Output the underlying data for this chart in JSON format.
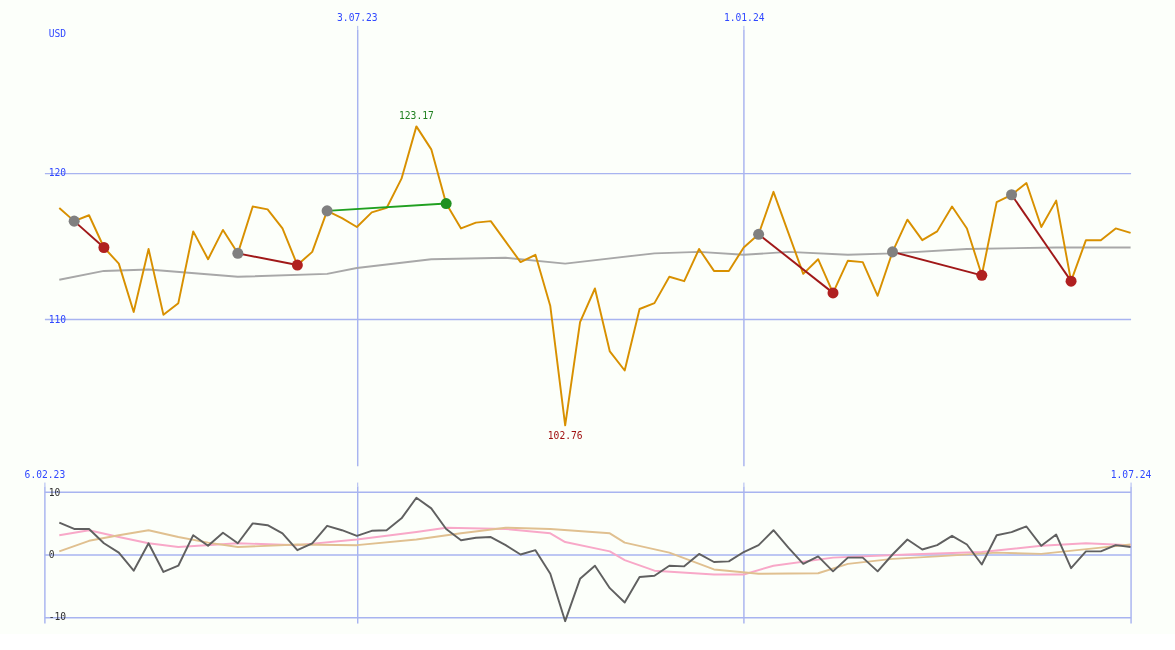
{
  "chart_data": [
    {
      "type": "line",
      "ylabel": "USD",
      "xlim": [
        "2023-02-06",
        "2024-07-01"
      ],
      "ylim": [
        100,
        129.8
      ],
      "yticks": [
        110,
        120
      ],
      "xticks": [
        {
          "value": "2023-07-03",
          "label": "3.07.23"
        },
        {
          "value": "2024-01-01",
          "label": "1.01.24"
        }
      ],
      "grid": true,
      "legend": false,
      "line_style": "solid",
      "annotations": [
        {
          "text": "123.17",
          "x": "2023-07-31",
          "y": 123.17
        },
        {
          "text": "102.76",
          "x": "2023-10-09",
          "y": 102.76
        }
      ],
      "x": [
        "2023-02-13",
        "2023-02-20",
        "2023-02-27",
        "2023-03-06",
        "2023-03-13",
        "2023-03-20",
        "2023-03-27",
        "2023-04-03",
        "2023-04-10",
        "2023-04-17",
        "2023-04-24",
        "2023-05-01",
        "2023-05-08",
        "2023-05-15",
        "2023-05-22",
        "2023-05-29",
        "2023-06-05",
        "2023-06-12",
        "2023-06-19",
        "2023-06-26",
        "2023-07-03",
        "2023-07-10",
        "2023-07-17",
        "2023-07-24",
        "2023-07-31",
        "2023-08-07",
        "2023-08-14",
        "2023-08-21",
        "2023-08-28",
        "2023-09-04",
        "2023-09-11",
        "2023-09-18",
        "2023-09-25",
        "2023-10-02",
        "2023-10-09",
        "2023-10-16",
        "2023-10-23",
        "2023-10-30",
        "2023-11-06",
        "2023-11-13",
        "2023-11-20",
        "2023-11-27",
        "2023-12-04",
        "2023-12-11",
        "2023-12-18",
        "2023-12-25",
        "2024-01-01",
        "2024-01-08",
        "2024-01-15",
        "2024-01-22",
        "2024-01-29",
        "2024-02-05",
        "2024-02-12",
        "2024-02-19",
        "2024-02-26",
        "2024-03-04",
        "2024-03-11",
        "2024-03-18",
        "2024-03-25",
        "2024-04-01",
        "2024-04-08",
        "2024-04-15",
        "2024-04-22",
        "2024-04-29",
        "2024-05-06",
        "2024-05-13",
        "2024-05-20",
        "2024-05-27",
        "2024-06-03",
        "2024-06-10",
        "2024-06-17",
        "2024-06-24",
        "2024-07-01"
      ],
      "series": [
        {
          "color": "#a8a8a8",
          "x": [
            "2023-02-13",
            "2023-03-06",
            "2023-03-27",
            "2023-05-08",
            "2023-06-19",
            "2023-07-03",
            "2023-08-07",
            "2023-09-11",
            "2023-10-09",
            "2023-11-20",
            "2023-12-11",
            "2024-01-01",
            "2024-01-22",
            "2024-02-19",
            "2024-03-11",
            "2024-04-15",
            "2024-05-27",
            "2024-07-01"
          ],
          "values": [
            112.7,
            113.3,
            113.4,
            112.9,
            113.1,
            113.5,
            114.1,
            114.2,
            113.8,
            114.5,
            114.6,
            114.4,
            114.6,
            114.4,
            114.5,
            114.8,
            114.9,
            114.9
          ]
        },
        {
          "color": "#d89000",
          "values": [
            117.6,
            116.7,
            117.1,
            114.9,
            113.8,
            110.5,
            114.8,
            110.3,
            111.1,
            116.0,
            114.1,
            116.1,
            114.5,
            117.7,
            117.5,
            116.2,
            113.7,
            114.6,
            117.4,
            116.9,
            116.3,
            117.3,
            117.6,
            119.6,
            123.17,
            121.6,
            117.9,
            116.2,
            116.6,
            116.7,
            115.3,
            113.9,
            114.4,
            110.9,
            102.76,
            109.8,
            112.1,
            107.8,
            106.5,
            110.7,
            111.1,
            112.9,
            112.6,
            114.8,
            113.3,
            113.3,
            114.9,
            115.8,
            118.7,
            115.9,
            113.1,
            114.1,
            111.8,
            114.0,
            113.9,
            111.6,
            114.6,
            116.8,
            115.4,
            116.0,
            117.7,
            116.2,
            113.0,
            118.0,
            118.5,
            119.3,
            116.3,
            118.1,
            112.6,
            115.4,
            115.4,
            116.2,
            115.9
          ]
        },
        {
          "color": "#a01818",
          "x": [
            "2023-02-20",
            "2023-03-06"
          ],
          "values": [
            116.7,
            114.9
          ]
        },
        {
          "color": "#a01818",
          "x": [
            "2023-05-08",
            "2023-06-05"
          ],
          "values": [
            114.5,
            113.7
          ]
        },
        {
          "color": "#a01818",
          "x": [
            "2024-01-08",
            "2024-02-12"
          ],
          "values": [
            115.8,
            111.8
          ]
        },
        {
          "color": "#a01818",
          "x": [
            "2024-03-11",
            "2024-04-22"
          ],
          "values": [
            114.6,
            113.0
          ]
        },
        {
          "color": "#a01818",
          "x": [
            "2024-05-06",
            "2024-06-03"
          ],
          "values": [
            118.5,
            112.6
          ]
        },
        {
          "color": "#20a020",
          "x": [
            "2023-06-19",
            "2023-08-14"
          ],
          "values": [
            117.4,
            117.9
          ]
        },
        {
          "type": "scatter",
          "color": "#808080",
          "x": [
            "2023-02-20",
            "2023-05-08",
            "2023-06-19",
            "2024-01-08",
            "2024-03-11",
            "2024-05-06"
          ],
          "values": [
            116.7,
            114.5,
            117.4,
            115.8,
            114.6,
            118.5
          ]
        },
        {
          "type": "scatter",
          "color": "#b02020",
          "x": [
            "2023-03-06",
            "2023-06-05",
            "2024-02-12",
            "2024-04-22",
            "2024-06-03"
          ],
          "values": [
            114.9,
            113.7,
            111.8,
            113.0,
            112.6
          ]
        },
        {
          "type": "scatter",
          "color": "#209020",
          "x": [
            "2023-08-14"
          ],
          "values": [
            117.9
          ]
        }
      ]
    },
    {
      "type": "line",
      "xlim": [
        "2023-02-06",
        "2024-07-01"
      ],
      "ylim": [
        -11,
        11
      ],
      "yticks": [
        -10,
        0,
        10
      ],
      "xticks": [
        {
          "value": "2023-02-06",
          "label": "6.02.23"
        },
        {
          "value": "2023-07-03",
          "label": null
        },
        {
          "value": "2024-01-01",
          "label": null
        },
        {
          "value": "2024-07-01",
          "label": "1.07.24"
        }
      ],
      "grid": true,
      "legend": false,
      "line_style": "solid",
      "series": [
        {
          "color": "#f8a8c8",
          "x": [
            "2023-02-13",
            "2023-02-27",
            "2023-03-13",
            "2023-03-27",
            "2023-04-10",
            "2023-05-08",
            "2023-06-05",
            "2023-07-03",
            "2023-07-31",
            "2023-08-14",
            "2023-09-11",
            "2023-10-02",
            "2023-10-09",
            "2023-10-30",
            "2023-11-06",
            "2023-11-20",
            "2023-12-18",
            "2024-01-01",
            "2024-01-15",
            "2024-02-12",
            "2024-03-18",
            "2024-04-22",
            "2024-05-20",
            "2024-06-10",
            "2024-07-01"
          ],
          "values": [
            3.1,
            3.9,
            2.8,
            1.8,
            1.2,
            1.8,
            1.5,
            2.4,
            3.6,
            4.3,
            4.1,
            3.4,
            2.0,
            0.5,
            -0.9,
            -2.6,
            -3.2,
            -3.2,
            -1.8,
            -0.5,
            0,
            0.4,
            1.4,
            1.8,
            1.5
          ]
        },
        {
          "color": "#e0c090",
          "x": [
            "2023-02-13",
            "2023-02-27",
            "2023-03-13",
            "2023-03-27",
            "2023-04-10",
            "2023-04-24",
            "2023-05-08",
            "2023-06-05",
            "2023-07-03",
            "2023-07-31",
            "2023-08-21",
            "2023-09-11",
            "2023-10-02",
            "2023-10-30",
            "2023-11-06",
            "2023-11-27",
            "2023-12-18",
            "2024-01-08",
            "2024-02-05",
            "2024-02-19",
            "2024-03-11",
            "2024-04-01",
            "2024-04-29",
            "2024-05-20",
            "2024-06-17",
            "2024-07-01"
          ],
          "values": [
            0.5,
            2.2,
            3.1,
            3.9,
            2.8,
            1.9,
            1.2,
            1.6,
            1.5,
            2.4,
            3.4,
            4.3,
            4.1,
            3.4,
            1.9,
            0.3,
            -2.4,
            -3.1,
            -3.0,
            -1.5,
            -0.7,
            -0.3,
            0.3,
            0.1,
            1.1,
            1.6
          ]
        },
        {
          "color": "#606060",
          "values": [
            5.1,
            4.1,
            4.1,
            1.8,
            0.3,
            -2.6,
            1.8,
            -2.8,
            -1.8,
            3.1,
            1.4,
            3.5,
            1.8,
            5.0,
            4.7,
            3.4,
            0.7,
            1.8,
            4.6,
            3.9,
            3.0,
            3.8,
            3.9,
            5.8,
            9.1,
            7.4,
            4.1,
            2.3,
            2.7,
            2.8,
            1.5,
            0,
            0.7,
            -3.1,
            -10.7,
            -3.9,
            -1.8,
            -5.4,
            -7.7,
            -3.6,
            -3.4,
            -1.8,
            -1.9,
            0.1,
            -1.2,
            -1.1,
            0.4,
            1.5,
            3.9,
            1.1,
            -1.5,
            -0.3,
            -2.7,
            -0.5,
            -0.5,
            -2.7,
            0,
            2.4,
            0.8,
            1.5,
            3.0,
            1.6,
            -1.6,
            3.1,
            3.6,
            4.5,
            1.4,
            3.2,
            -2.2,
            0.5,
            0.5,
            1.5,
            1.2
          ]
        }
      ],
      "x": [
        "2023-02-13",
        "2023-02-20",
        "2023-02-27",
        "2023-03-06",
        "2023-03-13",
        "2023-03-20",
        "2023-03-27",
        "2023-04-03",
        "2023-04-10",
        "2023-04-17",
        "2023-04-24",
        "2023-05-01",
        "2023-05-08",
        "2023-05-15",
        "2023-05-22",
        "2023-05-29",
        "2023-06-05",
        "2023-06-12",
        "2023-06-19",
        "2023-06-26",
        "2023-07-03",
        "2023-07-10",
        "2023-07-17",
        "2023-07-24",
        "2023-07-31",
        "2023-08-07",
        "2023-08-14",
        "2023-08-21",
        "2023-08-28",
        "2023-09-04",
        "2023-09-11",
        "2023-09-18",
        "2023-09-25",
        "2023-10-02",
        "2023-10-09",
        "2023-10-16",
        "2023-10-23",
        "2023-10-30",
        "2023-11-06",
        "2023-11-13",
        "2023-11-20",
        "2023-11-27",
        "2023-12-04",
        "2023-12-11",
        "2023-12-18",
        "2023-12-25",
        "2024-01-01",
        "2024-01-08",
        "2024-01-15",
        "2024-01-22",
        "2024-01-29",
        "2024-02-05",
        "2024-02-12",
        "2024-02-19",
        "2024-02-26",
        "2024-03-04",
        "2024-03-11",
        "2024-03-18",
        "2024-03-25",
        "2024-04-01",
        "2024-04-08",
        "2024-04-15",
        "2024-04-22",
        "2024-04-29",
        "2024-05-06",
        "2024-05-13",
        "2024-05-20",
        "2024-05-27",
        "2024-06-03",
        "2024-06-10",
        "2024-06-17",
        "2024-06-24",
        "2024-07-01"
      ]
    }
  ]
}
